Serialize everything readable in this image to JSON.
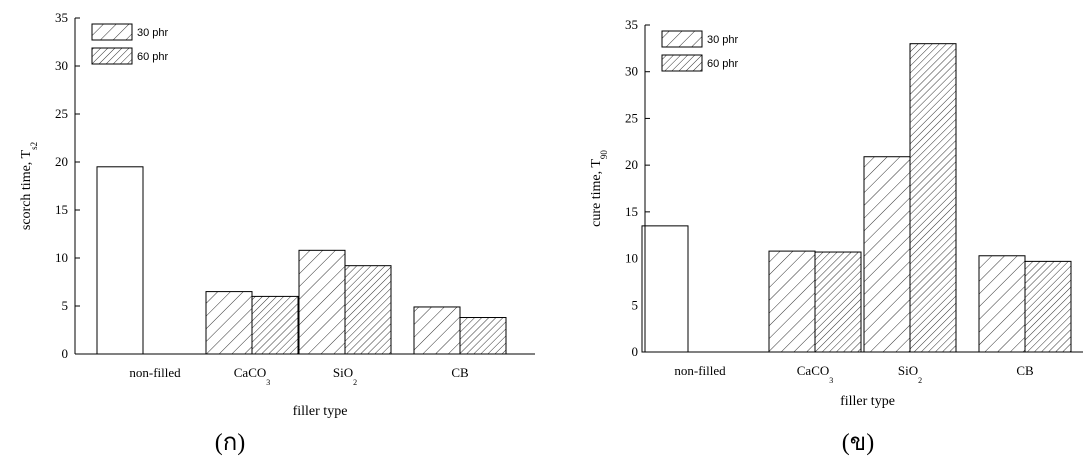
{
  "chart_data": [
    {
      "type": "bar",
      "y_label": "scorch time, T",
      "y_label_subscript": "s2",
      "x_label": "filler type",
      "caption": "(ก)",
      "categories": [
        "non-filled",
        "CaCO",
        "SiO",
        "CB"
      ],
      "category_subscripts": [
        null,
        "3",
        "2",
        null
      ],
      "unfilled_values": [
        19.5,
        null,
        null,
        null
      ],
      "series": [
        {
          "name": "30 phr",
          "values": [
            null,
            6.5,
            10.8,
            4.9
          ]
        },
        {
          "name": "60 phr",
          "values": [
            null,
            6.0,
            9.2,
            3.8
          ]
        }
      ],
      "ylim": [
        0,
        35
      ],
      "yticks": [
        0,
        5,
        10,
        15,
        20,
        25,
        30,
        35
      ]
    },
    {
      "type": "bar",
      "y_label": "cure time, T",
      "y_label_subscript": "90",
      "x_label": "filler type",
      "caption": "(ข)",
      "categories": [
        "non-filled",
        "CaCO",
        "SiO",
        "CB"
      ],
      "category_subscripts": [
        null,
        "3",
        "2",
        null
      ],
      "unfilled_values": [
        13.5,
        null,
        null,
        null
      ],
      "series": [
        {
          "name": "30 phr",
          "values": [
            null,
            10.8,
            20.9,
            10.3
          ]
        },
        {
          "name": "60 phr",
          "values": [
            null,
            10.7,
            33.0,
            9.7
          ]
        }
      ],
      "ylim": [
        0,
        35
      ],
      "yticks": [
        0,
        5,
        10,
        15,
        20,
        25,
        30,
        35
      ]
    }
  ]
}
